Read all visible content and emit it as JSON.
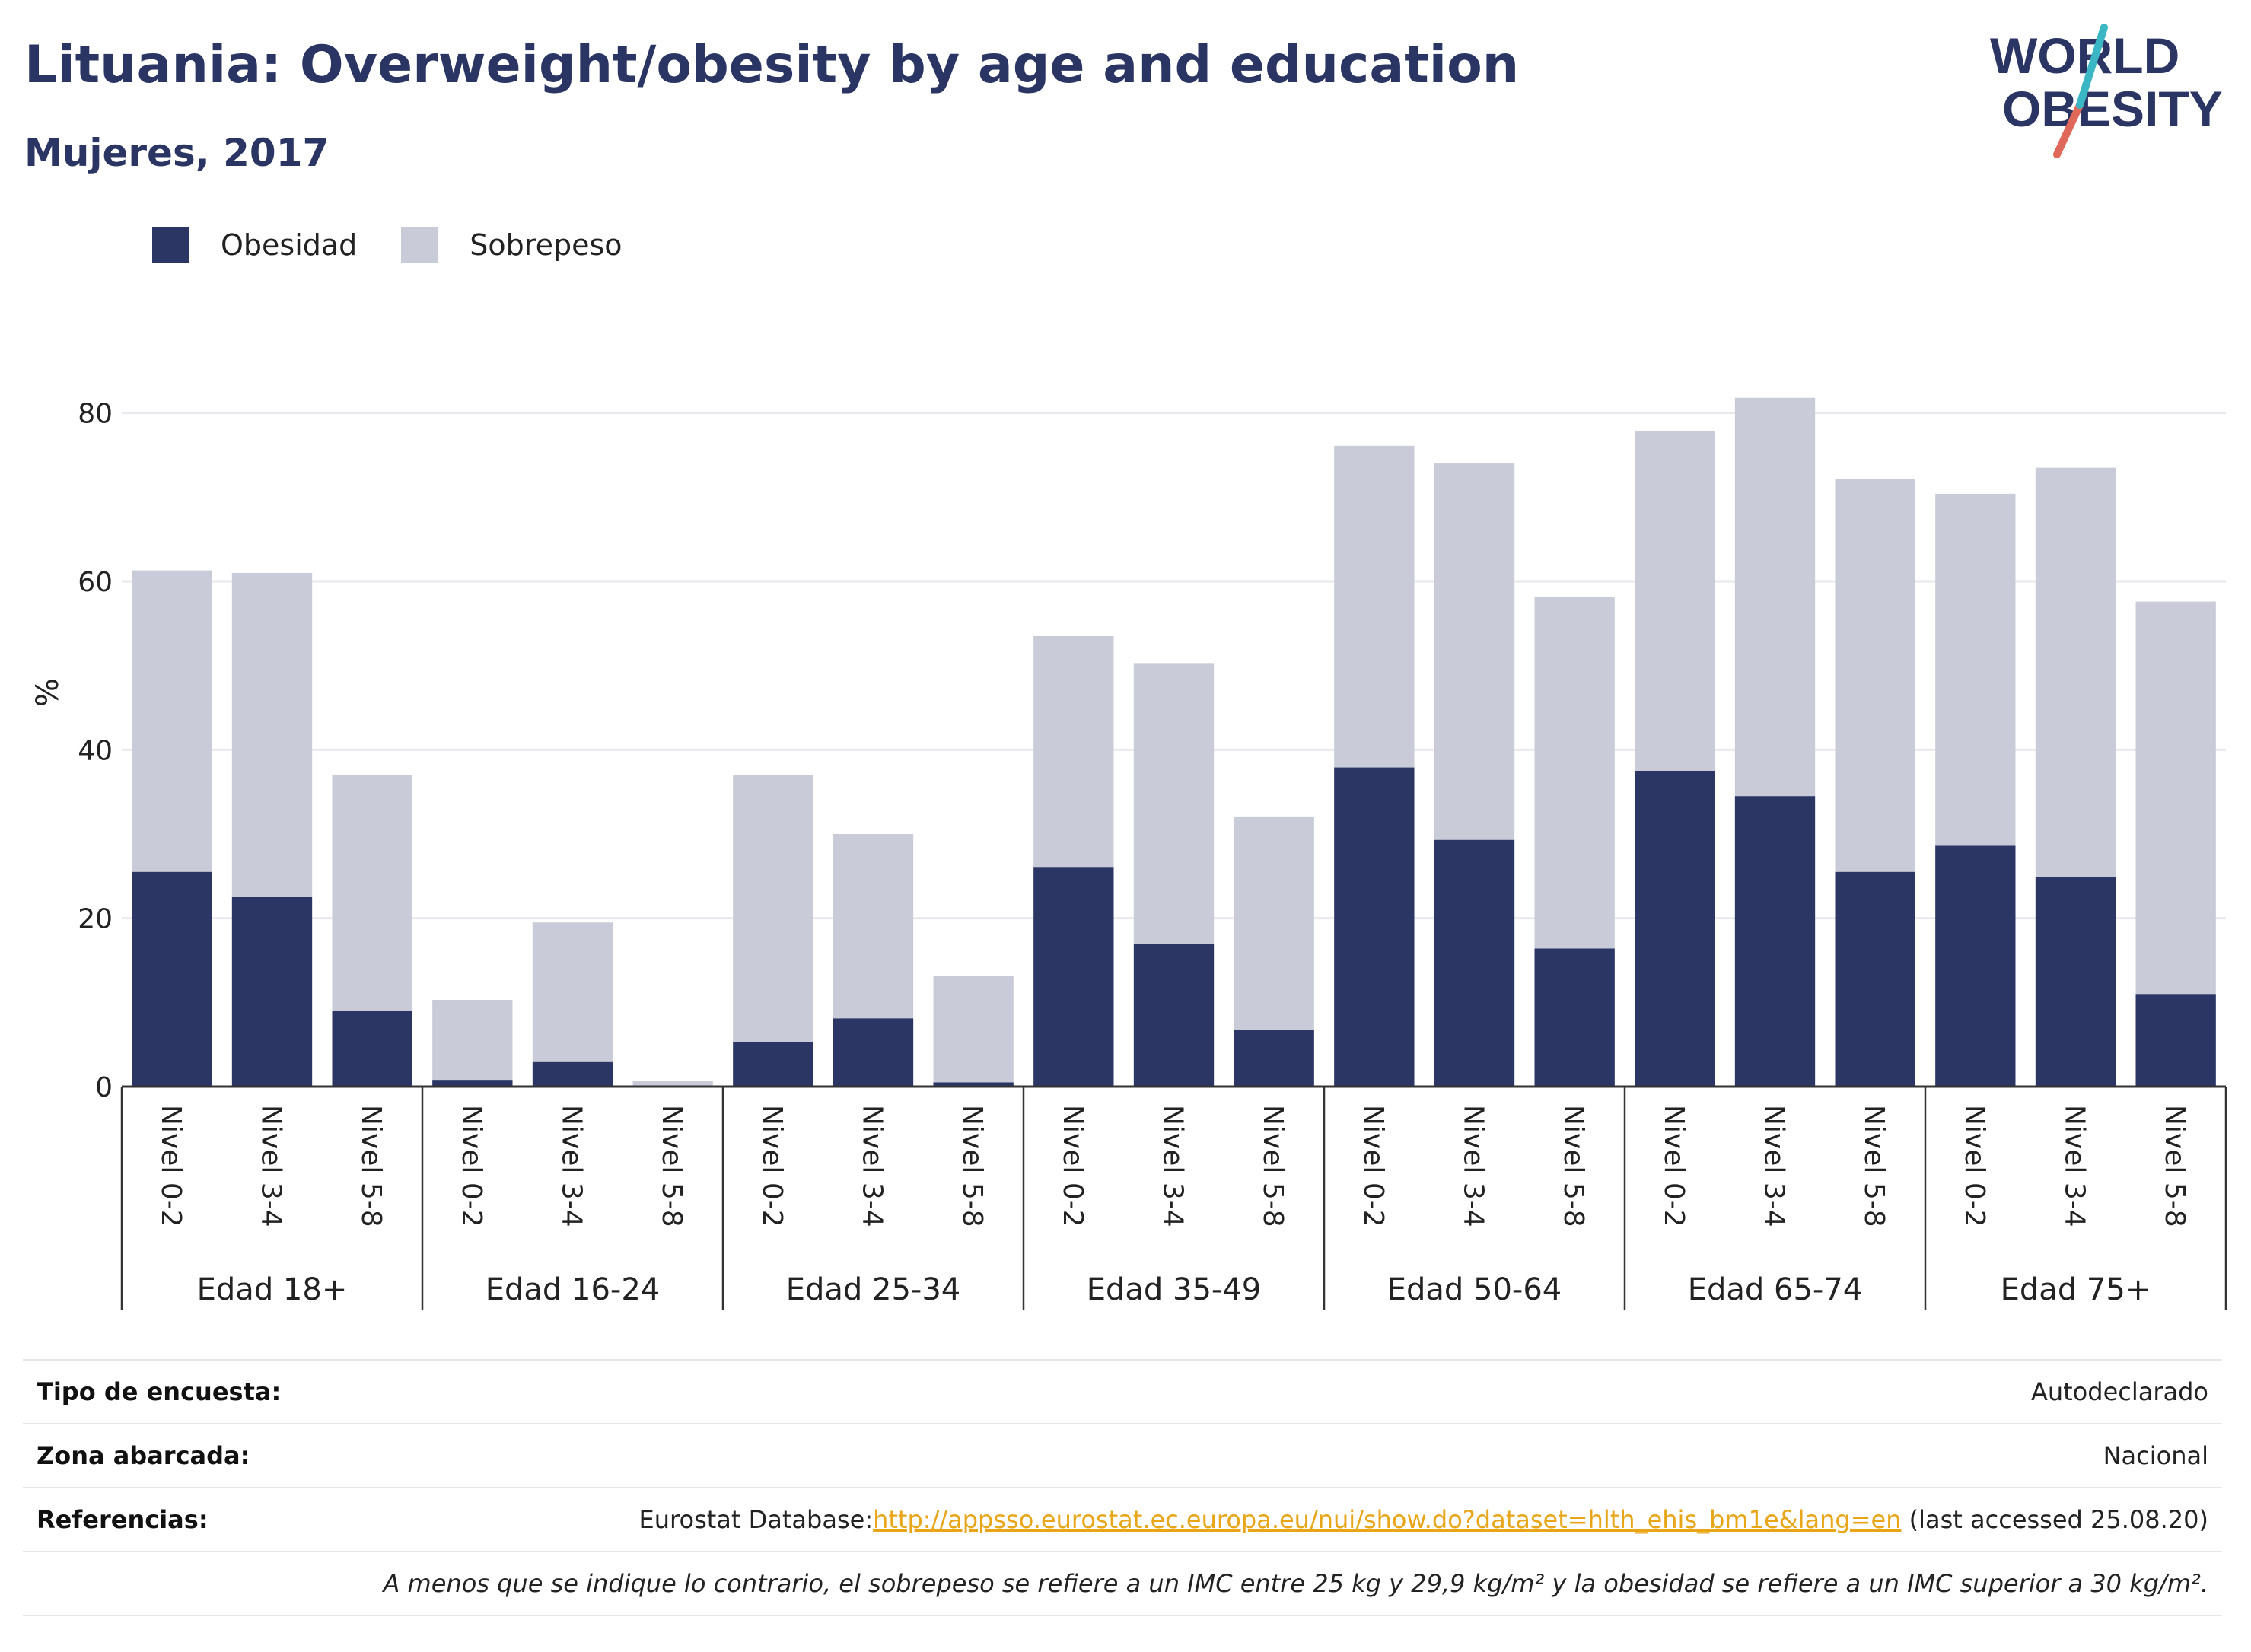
{
  "header": {
    "title": "Lituania: Overweight/obesity by age and education",
    "subtitle": "Mujeres, 2017",
    "logo_text_line1": "WORLD",
    "logo_text_line2": "OBESITY"
  },
  "legend": {
    "obesity_label": "Obesidad",
    "overweight_label": "Sobrepeso"
  },
  "colors": {
    "obesity": "#2b3664",
    "overweight": "#c9ccd8",
    "grid": "#e7e9ee",
    "axis": "#333333",
    "logo_teal": "#3bb6c4",
    "logo_red": "#e0685a",
    "link": "#e8a517"
  },
  "chart_data": {
    "type": "bar",
    "stacked": true,
    "ylabel": "%",
    "xlabel": "",
    "ylim": [
      0,
      90
    ],
    "yticks": [
      0,
      20,
      40,
      60,
      80
    ],
    "grid": true,
    "legend_position": "top-left",
    "groups": [
      {
        "label": "Edad 18+",
        "bars": [
          {
            "label": "Nivel 0-2",
            "obesity": 25.5,
            "total": 61.3
          },
          {
            "label": "Nivel 3-4",
            "obesity": 22.5,
            "total": 61.0
          },
          {
            "label": "Nivel 5-8",
            "obesity": 9.0,
            "total": 37.0
          }
        ]
      },
      {
        "label": "Edad 16-24",
        "bars": [
          {
            "label": "Nivel 0-2",
            "obesity": 0.8,
            "total": 10.3
          },
          {
            "label": "Nivel 3-4",
            "obesity": 3.0,
            "total": 19.5
          },
          {
            "label": "Nivel 5-8",
            "obesity": 0.0,
            "total": 0.7
          }
        ]
      },
      {
        "label": "Edad 25-34",
        "bars": [
          {
            "label": "Nivel 0-2",
            "obesity": 5.3,
            "total": 37.0
          },
          {
            "label": "Nivel 3-4",
            "obesity": 8.1,
            "total": 30.0
          },
          {
            "label": "Nivel 5-8",
            "obesity": 0.5,
            "total": 13.1
          }
        ]
      },
      {
        "label": "Edad 35-49",
        "bars": [
          {
            "label": "Nivel 0-2",
            "obesity": 26.0,
            "total": 53.5
          },
          {
            "label": "Nivel 3-4",
            "obesity": 16.9,
            "total": 50.3
          },
          {
            "label": "Nivel 5-8",
            "obesity": 6.7,
            "total": 32.0
          }
        ]
      },
      {
        "label": "Edad 50-64",
        "bars": [
          {
            "label": "Nivel 0-2",
            "obesity": 37.9,
            "total": 76.1
          },
          {
            "label": "Nivel 3-4",
            "obesity": 29.3,
            "total": 74.0
          },
          {
            "label": "Nivel 5-8",
            "obesity": 16.4,
            "total": 58.2
          }
        ]
      },
      {
        "label": "Edad 65-74",
        "bars": [
          {
            "label": "Nivel 0-2",
            "obesity": 37.5,
            "total": 77.8
          },
          {
            "label": "Nivel 3-4",
            "obesity": 34.5,
            "total": 81.8
          },
          {
            "label": "Nivel 5-8",
            "obesity": 25.5,
            "total": 72.2
          }
        ]
      },
      {
        "label": "Edad 75+",
        "bars": [
          {
            "label": "Nivel 0-2",
            "obesity": 28.6,
            "total": 70.4
          },
          {
            "label": "Nivel 3-4",
            "obesity": 24.9,
            "total": 73.5
          },
          {
            "label": "Nivel 5-8",
            "obesity": 11.0,
            "total": 57.6
          }
        ]
      }
    ]
  },
  "meta": {
    "survey_type_label": "Tipo de encuesta:",
    "survey_type_value": "Autodeclarado",
    "area_label": "Zona abarcada:",
    "area_value": "Nacional",
    "references_label": "Referencias:",
    "references_prefix": "Eurostat Database:",
    "references_link": "http://appsso.eurostat.ec.europa.eu/nui/show.do?dataset=hlth_ehis_bm1e&lang=en",
    "references_suffix": " (last accessed 25.08.20)",
    "note": "A menos que se indique lo contrario, el sobrepeso se refiere a un IMC entre 25 kg y 29,9 kg/m² y la obesidad se refiere a un IMC superior a 30 kg/m²."
  }
}
